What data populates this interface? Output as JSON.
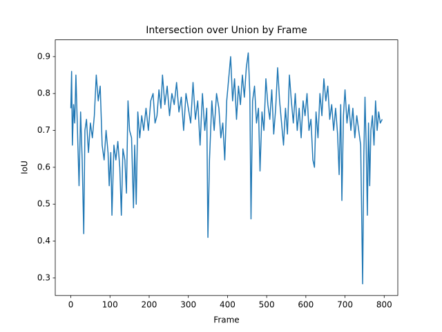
{
  "chart_data": {
    "type": "line",
    "title": "Intersection over Union by Frame",
    "x_label": "Frame",
    "y_label": "IoU",
    "xlim": [
      -39.75,
      834.75
    ],
    "xticks": [
      0,
      100,
      200,
      300,
      400,
      500,
      600,
      700,
      800
    ],
    "ylim": [
      0.2525,
      0.9455
    ],
    "yticks": [
      0.3,
      0.4,
      0.5,
      0.6,
      0.7,
      0.8,
      0.9
    ],
    "grid": false,
    "series": [
      {
        "color": "#1f77b4",
        "x": [
          0,
          2,
          4,
          7,
          10,
          13,
          17,
          21,
          25,
          29,
          33,
          36,
          40,
          45,
          50,
          55,
          60,
          65,
          70,
          75,
          80,
          85,
          90,
          95,
          98,
          102,
          105,
          110,
          115,
          120,
          125,
          129,
          133,
          138,
          142,
          146,
          150,
          155,
          160,
          163,
          167,
          171,
          176,
          181,
          186,
          192,
          198,
          204,
          210,
          215,
          220,
          225,
          230,
          234,
          240,
          246,
          252,
          258,
          264,
          270,
          276,
          282,
          288,
          294,
          300,
          306,
          312,
          318,
          324,
          330,
          336,
          342,
          347,
          350,
          354,
          360,
          366,
          372,
          378,
          383,
          388,
          393,
          398,
          403,
          408,
          413,
          418,
          423,
          428,
          433,
          438,
          443,
          448,
          453,
          457,
          460,
          464,
          469,
          474,
          479,
          483,
          488,
          493,
          498,
          503,
          508,
          513,
          518,
          523,
          528,
          533,
          538,
          543,
          548,
          553,
          558,
          563,
          568,
          573,
          578,
          583,
          588,
          593,
          598,
          603,
          608,
          613,
          618,
          622,
          626,
          631,
          636,
          641,
          646,
          651,
          656,
          661,
          666,
          671,
          676,
          681,
          685,
          689,
          692,
          696,
          700,
          705,
          710,
          715,
          720,
          725,
          730,
          735,
          740,
          745,
          748,
          751,
          754,
          757,
          760,
          763,
          766,
          770,
          774,
          778,
          782,
          786,
          790,
          795
        ],
        "values": [
          0.76,
          0.86,
          0.66,
          0.77,
          0.72,
          0.85,
          0.7,
          0.55,
          0.75,
          0.62,
          0.42,
          0.7,
          0.73,
          0.64,
          0.72,
          0.68,
          0.74,
          0.85,
          0.78,
          0.82,
          0.66,
          0.62,
          0.7,
          0.64,
          0.55,
          0.64,
          0.47,
          0.66,
          0.62,
          0.67,
          0.6,
          0.47,
          0.65,
          0.62,
          0.53,
          0.78,
          0.7,
          0.68,
          0.49,
          0.66,
          0.5,
          0.75,
          0.68,
          0.74,
          0.7,
          0.76,
          0.7,
          0.78,
          0.8,
          0.72,
          0.74,
          0.81,
          0.76,
          0.85,
          0.77,
          0.82,
          0.74,
          0.8,
          0.77,
          0.83,
          0.75,
          0.79,
          0.7,
          0.8,
          0.76,
          0.72,
          0.83,
          0.73,
          0.78,
          0.66,
          0.8,
          0.7,
          0.76,
          0.41,
          0.62,
          0.78,
          0.7,
          0.8,
          0.76,
          0.68,
          0.72,
          0.62,
          0.78,
          0.84,
          0.9,
          0.78,
          0.84,
          0.73,
          0.82,
          0.77,
          0.85,
          0.79,
          0.87,
          0.91,
          0.8,
          0.46,
          0.78,
          0.82,
          0.72,
          0.76,
          0.59,
          0.75,
          0.7,
          0.84,
          0.77,
          0.73,
          0.81,
          0.69,
          0.76,
          0.87,
          0.78,
          0.72,
          0.66,
          0.76,
          0.69,
          0.85,
          0.78,
          0.72,
          0.8,
          0.7,
          0.76,
          0.68,
          0.78,
          0.74,
          0.8,
          0.7,
          0.73,
          0.62,
          0.6,
          0.75,
          0.68,
          0.8,
          0.74,
          0.84,
          0.78,
          0.82,
          0.73,
          0.77,
          0.7,
          0.76,
          0.69,
          0.58,
          0.77,
          0.51,
          0.74,
          0.81,
          0.72,
          0.77,
          0.7,
          0.76,
          0.68,
          0.74,
          0.7,
          0.66,
          0.284,
          0.63,
          0.79,
          0.66,
          0.47,
          0.72,
          0.55,
          0.7,
          0.74,
          0.66,
          0.78,
          0.7,
          0.75,
          0.72,
          0.73
        ]
      }
    ]
  }
}
